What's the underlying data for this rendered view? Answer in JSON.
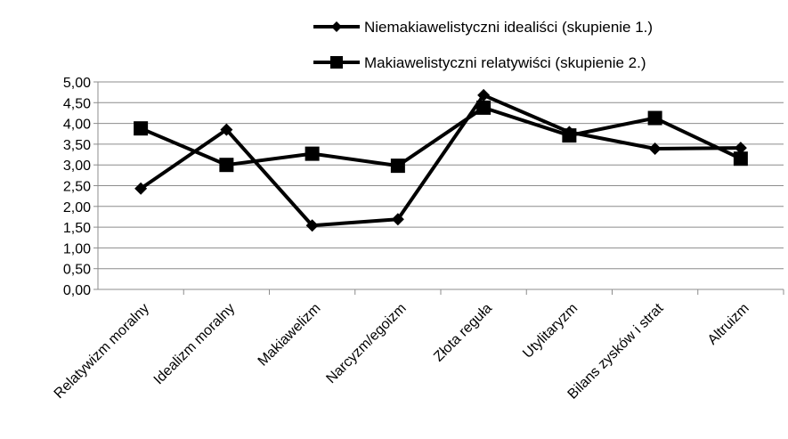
{
  "chart_data": {
    "type": "line",
    "title": "",
    "xlabel": "",
    "ylabel": "",
    "categories": [
      "Relatywizm moralny",
      "Idealizm moralny",
      "Makiawelizm",
      "Narcyzm/egoizm",
      "Złota reguła",
      "Utylitaryzm",
      "Bilans zysków i strat",
      "Altruizm"
    ],
    "ylim": [
      0,
      5
    ],
    "yticks": [
      "0,00",
      "0,50",
      "1,00",
      "1,50",
      "2,00",
      "2,50",
      "3,00",
      "3,50",
      "4,00",
      "4,50",
      "5,00"
    ],
    "grid": true,
    "legend_position": "top-right",
    "series": [
      {
        "name": "Niemakiawelistyczni idealiści (skupienie 1.)",
        "marker": "diamond",
        "color": "#000000",
        "values": [
          2.43,
          3.85,
          1.54,
          1.69,
          4.68,
          3.79,
          3.39,
          3.41
        ]
      },
      {
        "name": "Makiawelistyczni relatywiści (skupienie 2.)",
        "marker": "square",
        "color": "#000000",
        "values": [
          3.88,
          3.0,
          3.27,
          2.98,
          4.38,
          3.71,
          4.13,
          3.15
        ]
      }
    ]
  }
}
